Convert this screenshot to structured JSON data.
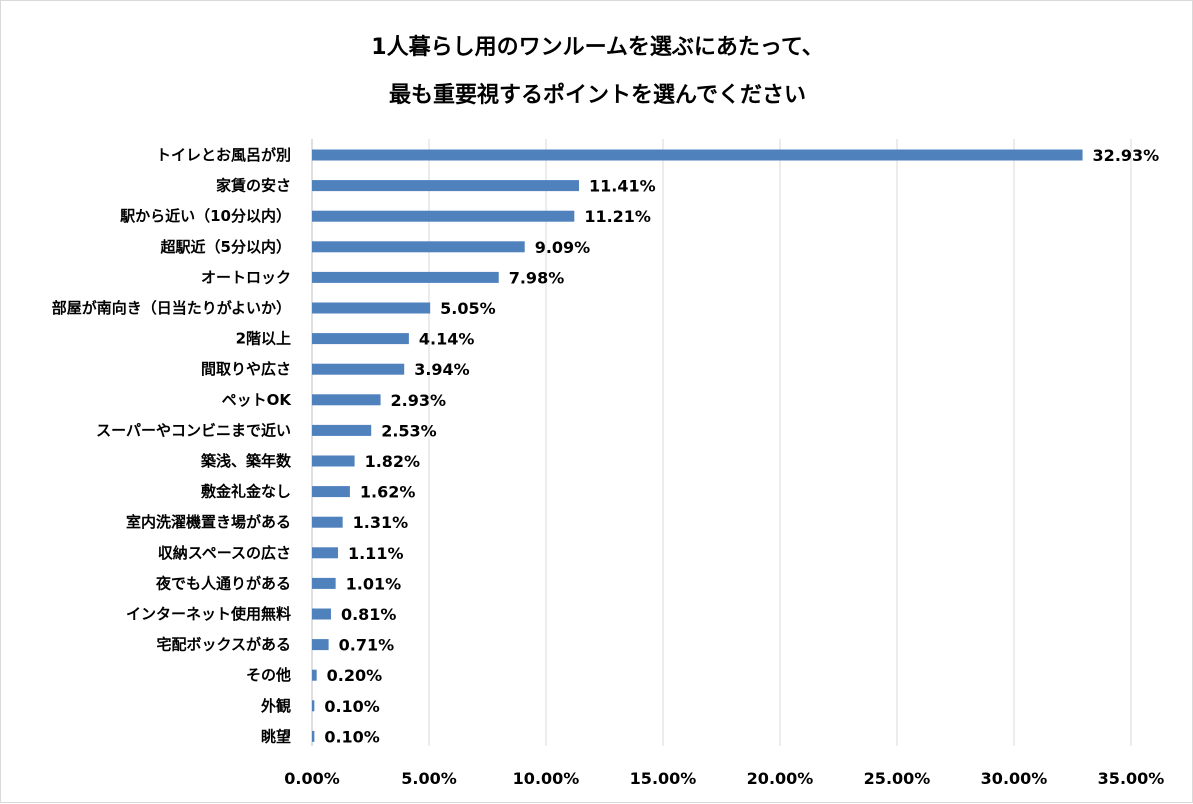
{
  "chart_data": {
    "type": "bar",
    "orientation": "horizontal",
    "title": [
      "1人暮らし用のワンルームを選ぶにあたって、",
      "最も重要視するポイントを選んでください"
    ],
    "categories": [
      "トイレとお風呂が別",
      "家賃の安さ",
      "駅から近い（10分以内）",
      "超駅近（5分以内）",
      "オートロック",
      "部屋が南向き（日当たりがよいか）",
      "2階以上",
      "間取りや広さ",
      "ペットOK",
      "スーパーやコンビニまで近い",
      "築浅、築年数",
      "敷金礼金なし",
      "室内洗濯機置き場がある",
      "収納スペースの広さ",
      "夜でも人通りがある",
      "インターネット使用無料",
      "宅配ボックスがある",
      "その他",
      "外観",
      "眺望"
    ],
    "values": [
      32.93,
      11.41,
      11.21,
      9.09,
      7.98,
      5.05,
      4.14,
      3.94,
      2.93,
      2.53,
      1.82,
      1.62,
      1.31,
      1.11,
      1.01,
      0.81,
      0.71,
      0.2,
      0.1,
      0.1
    ],
    "value_labels": [
      "32.93%",
      "11.41%",
      "11.21%",
      "9.09%",
      "7.98%",
      "5.05%",
      "4.14%",
      "3.94%",
      "2.93%",
      "2.53%",
      "1.82%",
      "1.62%",
      "1.31%",
      "1.11%",
      "1.01%",
      "0.81%",
      "0.71%",
      "0.20%",
      "0.10%",
      "0.10%"
    ],
    "xlim": [
      0,
      35
    ],
    "xticks": [
      0,
      5,
      10,
      15,
      20,
      25,
      30,
      35
    ],
    "xtick_labels": [
      "0.00%",
      "5.00%",
      "10.00%",
      "15.00%",
      "20.00%",
      "25.00%",
      "30.00%",
      "35.00%"
    ],
    "xlabel": "",
    "ylabel": "",
    "grid": true,
    "bar_color": "#4f81bd",
    "grid_color": "#d9d9d9"
  }
}
